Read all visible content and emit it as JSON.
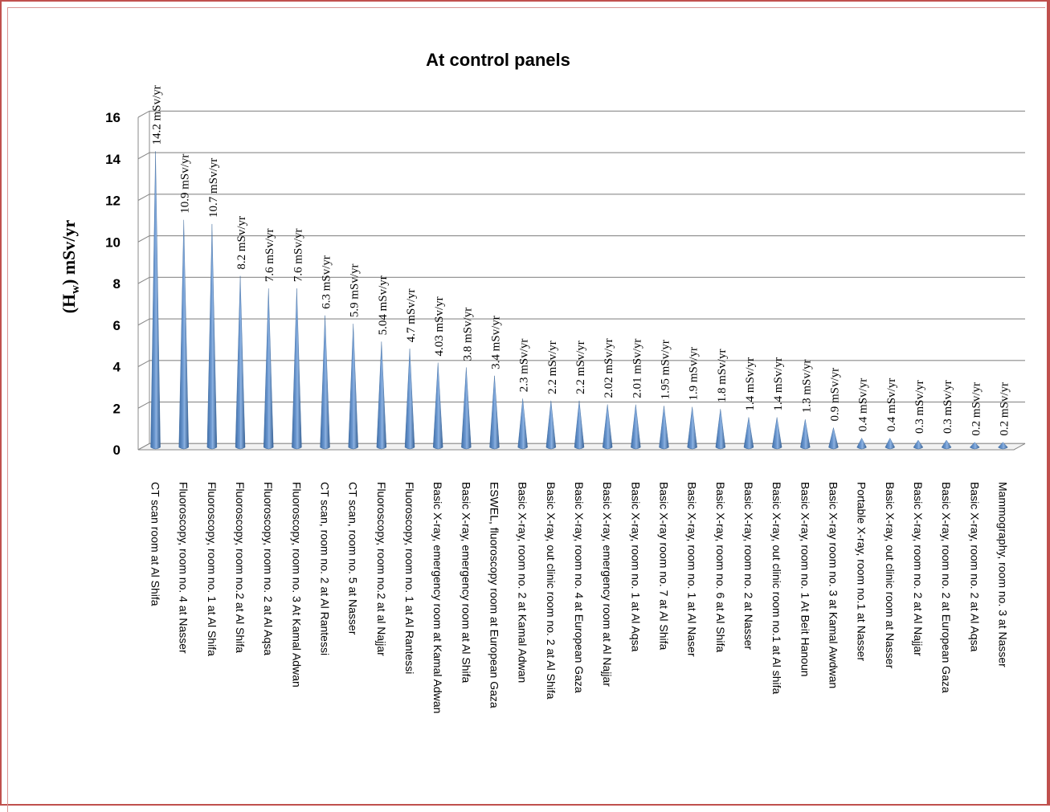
{
  "chart_data": {
    "type": "bar",
    "title": "At control panels",
    "ylabel": "(Hw) mSv/yr",
    "ylabel_main": "H",
    "ylabel_sub": "w",
    "ylabel_prefix": "(",
    "ylabel_suffix": ") mSv/yr",
    "xlabel": "",
    "ylim": [
      0,
      16
    ],
    "yticks": [
      0,
      2,
      4,
      6,
      8,
      10,
      12,
      14,
      16
    ],
    "grid": true,
    "legend": "none",
    "mark_style": "cone",
    "bar_color": "#4f81bd",
    "categories": [
      "CT scan room at Al Shifa",
      "Fluoroscopy, room no. 4 at Nasser",
      "Fluoroscopy, room no. 1 at Al Shifa",
      "Fluoroscopy, room no.2 at Al Shifa",
      "Fluoroscopy, room no. 2 at Al Aqsa",
      "Fluoroscopy, room no. 3 At Kamal Adwan",
      "CT scan, room no. 2 at Al Rantessi",
      "CT scan, room no. 5 at Nasser",
      "Fluoroscopy, room no.2 at al Najjar",
      "Fluoroscopy, room no. 1 at Al Rantessi",
      "Basic X-ray, emergency room at Kamal Adwan",
      "Basic X-ray, emergency room at Al Shifa",
      "ESWEL, fluoroscopy room at European Gaza",
      "Basic X-ray, room no. 2 at Kamal Adwan",
      "Basic X-ray, out clinic room no. 2 at Al Shifa",
      "Basic X-ray, room no. 4 at European Gaza",
      "Basic X-ray, emergency room at Al Najjar",
      "Basic X-ray, room no. 1 at Al Aqsa",
      "Basic X-ray room no. 7 at Al Shifa",
      "Basic X-ray, room no. 1 at Al Naser",
      "Basic X-ray, room no. 6 at Al Shifa",
      "Basic X-ray, room no. 2 at Nasser",
      "Basic X-ray, out clinic room no.1 at Al shifa",
      "Basic X-ray, room no. 1 At Beit Hanoun",
      "Basic X-ray room no. 3 at Kamal Awdwan",
      "Portable X-ray, room no.1 at Nasser",
      "Basic X-ray, out clinic room at Nasser",
      "Basic X-ray, room no. 2 at Al Najjar",
      "Basic X-ray, room no. 2 at European Gaza",
      "Basic X-ray, room no. 2 at Al Aqsa",
      "Mammography, room no. 3 at Nasser"
    ],
    "values": [
      14.2,
      10.9,
      10.7,
      8.2,
      7.6,
      7.6,
      6.3,
      5.9,
      5.04,
      4.7,
      4.03,
      3.8,
      3.4,
      2.3,
      2.2,
      2.2,
      2.02,
      2.01,
      1.95,
      1.9,
      1.8,
      1.4,
      1.4,
      1.3,
      0.9,
      0.4,
      0.4,
      0.3,
      0.3,
      0.2,
      0.2
    ],
    "data_labels": [
      "14.2 mSv/yr",
      "10.9 mSv/yr",
      "10.7 mSv/yr",
      "8.2 mSv/yr",
      "7.6 mSv/yr",
      "7.6 mSv/yr",
      "6.3  mSv/yr",
      "5.9 mSv/yr",
      "5.04 mSv/yr",
      "4.7  mSv/yr",
      "4.03 mSv/yr",
      "3.8 mSv/yr",
      "3.4 mSv/yr",
      "2.3 mSv/yr",
      "2.2 mSv/yr",
      "2.2 mSv/yr",
      "2.02 mSv/yr",
      "2.01 mSv/yr",
      "1.95 mSv/yr",
      "1.9 mSv/yr",
      "1.8 mSv/yr",
      "1.4 mSv/yr",
      "1.4 mSv/yr",
      "1.3 mSv/yr",
      "0.9 mSv/yr",
      "0.4 mSv/yr",
      "0.4 mSv/yr",
      "0.3 mSv/yr",
      "0.3 mSv/yr",
      "0.2 mSv/yr",
      "0.2 mSv/yr"
    ]
  }
}
